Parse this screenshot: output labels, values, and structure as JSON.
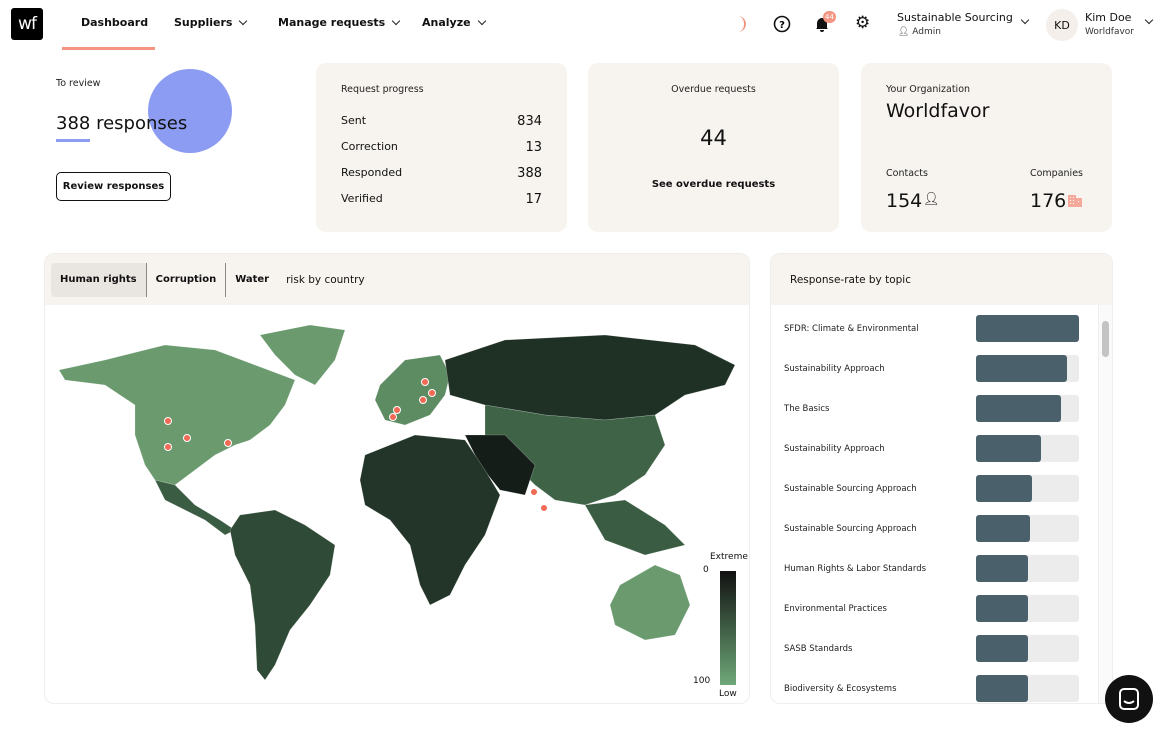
{
  "header": {
    "logo": "wf",
    "nav": [
      {
        "label": "Dashboard",
        "active": true
      },
      {
        "label": "Suppliers"
      },
      {
        "label": "Manage requests"
      },
      {
        "label": "Analyze"
      }
    ],
    "notifications": "44",
    "org": "Sustainable Sourcing",
    "role": "Admin",
    "user_initials": "KD",
    "user_name": "Kim Doe",
    "user_org": "Worldfavor",
    "accent": "#f49582"
  },
  "review": {
    "label": "To review",
    "value": "388 responses",
    "button": "Review responses"
  },
  "progress": {
    "title": "Request progress",
    "rows": [
      {
        "label": "Sent",
        "value": "834"
      },
      {
        "label": "Correction",
        "value": "13"
      },
      {
        "label": "Responded",
        "value": "388"
      },
      {
        "label": "Verified",
        "value": "17"
      }
    ]
  },
  "overdue": {
    "title": "Overdue requests",
    "value": "44",
    "link": "See overdue requests"
  },
  "org": {
    "title": "Your Organization",
    "name": "Worldfavor",
    "contacts_label": "Contacts",
    "contacts": "154",
    "companies_label": "Companies",
    "companies": "176"
  },
  "map": {
    "tabs": [
      "Human rights",
      "Corruption",
      "Water"
    ],
    "suffix": "risk by country",
    "legend_top": "Extreme",
    "legend_top_value": "0",
    "legend_bottom": "Low",
    "legend_bottom_value": "100"
  },
  "topics": {
    "title": "Response-rate by topic",
    "items": [
      {
        "label": "SFDR: Climate & Environmental",
        "rate": 100
      },
      {
        "label": "Sustainability Approach",
        "rate": 88
      },
      {
        "label": "The Basics",
        "rate": 83
      },
      {
        "label": "Sustainability Approach",
        "rate": 63
      },
      {
        "label": "Sustainable Sourcing Approach",
        "rate": 54
      },
      {
        "label": "Sustainable Sourcing Approach",
        "rate": 52
      },
      {
        "label": "Human Rights & Labor Standards",
        "rate": 50
      },
      {
        "label": "Environmental Practices",
        "rate": 50
      },
      {
        "label": "SASB Standards",
        "rate": 50
      },
      {
        "label": "Biodiversity & Ecosystems",
        "rate": 50
      }
    ]
  }
}
